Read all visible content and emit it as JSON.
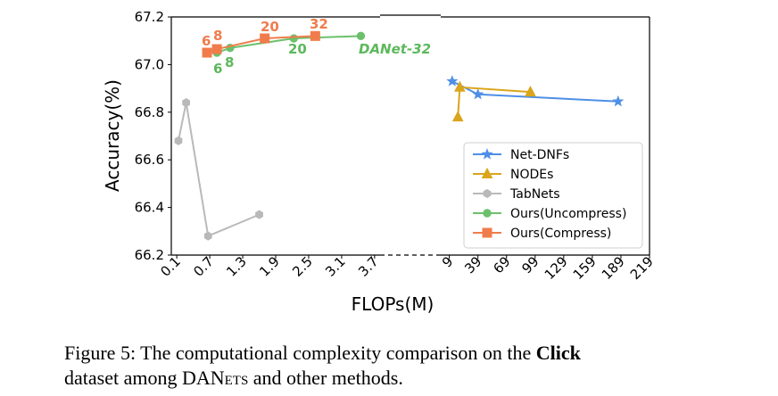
{
  "chart_data": {
    "type": "line",
    "xlabel": "FLOPs(M)",
    "ylabel": "Accuracy(%)",
    "ylim": [
      66.2,
      67.2
    ],
    "y_ticks": [
      "66.2",
      "66.4",
      "66.6",
      "66.8",
      "67.0",
      "67.2"
    ],
    "x_ticks_left": [
      "0.1",
      "0.7",
      "1.3",
      "1.9",
      "2.5",
      "3.1",
      "3.7"
    ],
    "x_ticks_right": [
      "9",
      "39",
      "69",
      "99",
      "129",
      "159",
      "189",
      "219"
    ],
    "xlim_left": [
      0.0,
      3.8
    ],
    "xlim_right": [
      0,
      219
    ],
    "grid": false,
    "legend_position": "lower-right",
    "series": [
      {
        "name": "Net-DNFs",
        "color": "#4f8fe6",
        "marker": "star",
        "segment": "right",
        "x": [
          12,
          39,
          186
        ],
        "y": [
          66.93,
          66.875,
          66.845
        ]
      },
      {
        "name": "NODEs",
        "color": "#daa51c",
        "marker": "triangle",
        "segment": "right",
        "x": [
          18,
          20,
          94
        ],
        "y": [
          66.78,
          66.905,
          66.885
        ]
      },
      {
        "name": "TabNets",
        "color": "#b9b9b9",
        "marker": "hexagon",
        "segment": "left",
        "x": [
          0.13,
          0.27,
          0.67,
          1.6
        ],
        "y": [
          66.68,
          66.84,
          66.28,
          66.37
        ]
      },
      {
        "name": "Ours(Uncompress)",
        "color": "#6cc06c",
        "marker": "circle",
        "segment": "left",
        "x": [
          0.83,
          1.07,
          2.23,
          3.45
        ],
        "y": [
          67.05,
          67.07,
          67.11,
          67.12
        ]
      },
      {
        "name": "Ours(Compress)",
        "color": "#f07c4c",
        "marker": "square",
        "segment": "left",
        "x": [
          0.65,
          0.83,
          1.7,
          2.62
        ],
        "y": [
          67.05,
          67.065,
          67.11,
          67.12
        ]
      }
    ],
    "annotations": {
      "compress": [
        "6",
        "8",
        "20",
        "32"
      ],
      "uncompress": [
        "6",
        "8",
        "20"
      ],
      "danet": "DANet-32"
    }
  },
  "caption": {
    "prefix": "Figure 5: The computational complexity comparison on the",
    "bold": "Click",
    "line2_a": "dataset among DAN",
    "line2_sc": "ets",
    "line2_b": "and other methods."
  }
}
